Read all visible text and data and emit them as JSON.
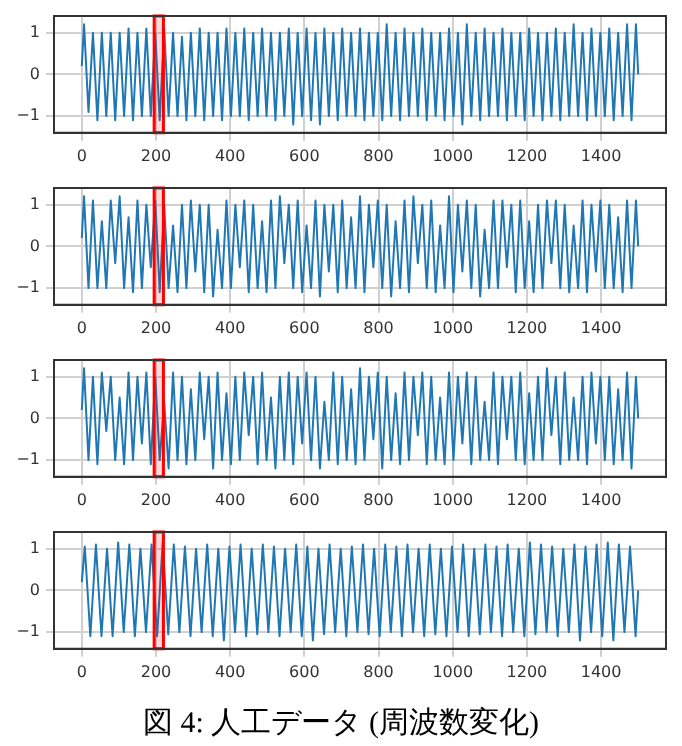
{
  "chart_data": [
    {
      "type": "line",
      "x": [
        0,
        6,
        18,
        30,
        42,
        54,
        66,
        78,
        90,
        102,
        114,
        126,
        138,
        150,
        162,
        174,
        186,
        198,
        210,
        222,
        234,
        246,
        258,
        270,
        282,
        294,
        306,
        318,
        330,
        342,
        354,
        366,
        378,
        390,
        402,
        414,
        426,
        438,
        450,
        462,
        474,
        486,
        498,
        510,
        522,
        534,
        546,
        558,
        570,
        582,
        594,
        606,
        618,
        630,
        642,
        654,
        666,
        678,
        690,
        702,
        714,
        726,
        738,
        750,
        762,
        774,
        786,
        798,
        810,
        822,
        834,
        846,
        858,
        870,
        882,
        894,
        906,
        918,
        930,
        942,
        954,
        966,
        978,
        990,
        1002,
        1014,
        1026,
        1038,
        1050,
        1062,
        1074,
        1086,
        1098,
        1110,
        1122,
        1134,
        1146,
        1158,
        1170,
        1182,
        1194,
        1206,
        1218,
        1230,
        1242,
        1254,
        1266,
        1278,
        1290,
        1302,
        1314,
        1326,
        1338,
        1350,
        1362,
        1374,
        1386,
        1398,
        1410,
        1422,
        1434,
        1446,
        1458,
        1470,
        1482,
        1494,
        1500
      ],
      "series": [
        {
          "color": "#1f77b4",
          "values": [
            0.2,
            1.2,
            -0.9,
            1.0,
            -1.1,
            1.0,
            -1.0,
            1.0,
            -1.1,
            1.0,
            -1.0,
            1.1,
            -1.1,
            1.0,
            -1.0,
            1.1,
            -1.0,
            1.0,
            -1.1,
            1.1,
            -1.0,
            1.0,
            -1.0,
            0.9,
            -1.1,
            1.0,
            -1.0,
            1.1,
            -1.1,
            1.0,
            -1.0,
            1.0,
            -1.1,
            1.1,
            -1.0,
            1.0,
            -1.0,
            1.1,
            -1.1,
            1.0,
            -1.0,
            1.1,
            -1.0,
            1.0,
            -1.1,
            1.0,
            -1.0,
            1.1,
            -1.2,
            1.0,
            -1.0,
            1.1,
            -1.1,
            1.0,
            -1.2,
            1.1,
            -1.0,
            1.0,
            -1.1,
            1.1,
            -1.0,
            1.0,
            -1.0,
            1.1,
            -1.1,
            1.0,
            -1.0,
            1.0,
            -1.1,
            1.2,
            -1.0,
            1.0,
            -1.1,
            1.1,
            -1.0,
            1.0,
            -1.0,
            1.1,
            -1.1,
            1.0,
            -1.0,
            1.0,
            -1.1,
            1.1,
            -1.0,
            1.0,
            -1.2,
            1.2,
            -1.0,
            1.0,
            -1.1,
            1.1,
            -1.0,
            1.0,
            -1.0,
            1.1,
            -1.1,
            1.0,
            -1.0,
            1.0,
            -1.1,
            1.1,
            -1.0,
            1.0,
            -1.1,
            1.0,
            -1.0,
            1.1,
            -1.1,
            1.0,
            -1.0,
            1.2,
            -1.0,
            1.0,
            -1.1,
            1.1,
            -1.0,
            1.0,
            -1.0,
            1.1,
            -1.1,
            1.0,
            -1.0,
            1.2,
            -1.1,
            1.2,
            0
          ]
        }
      ],
      "xlim": [
        -75,
        1575
      ],
      "ylim": [
        -1.4,
        1.4
      ],
      "xticks": [
        0,
        200,
        400,
        600,
        800,
        1000,
        1200,
        1400
      ],
      "yticks": [
        -1,
        0,
        1
      ],
      "grid": true,
      "bands": [
        {
          "axis": "x",
          "from": 195,
          "to": 220,
          "color": "#ff0000"
        }
      ]
    },
    {
      "type": "line",
      "x": [
        0,
        6,
        18,
        30,
        42,
        54,
        66,
        78,
        90,
        102,
        114,
        126,
        138,
        150,
        162,
        174,
        186,
        198,
        210,
        222,
        234,
        246,
        258,
        270,
        282,
        294,
        306,
        318,
        330,
        342,
        354,
        366,
        378,
        390,
        402,
        414,
        426,
        438,
        450,
        462,
        474,
        486,
        498,
        510,
        522,
        534,
        546,
        558,
        570,
        582,
        594,
        606,
        618,
        630,
        642,
        654,
        666,
        678,
        690,
        702,
        714,
        726,
        738,
        750,
        762,
        774,
        786,
        798,
        810,
        822,
        834,
        846,
        858,
        870,
        882,
        894,
        906,
        918,
        930,
        942,
        954,
        966,
        978,
        990,
        1002,
        1014,
        1026,
        1038,
        1050,
        1062,
        1074,
        1086,
        1098,
        1110,
        1122,
        1134,
        1146,
        1158,
        1170,
        1182,
        1194,
        1206,
        1218,
        1230,
        1242,
        1254,
        1266,
        1278,
        1290,
        1302,
        1314,
        1326,
        1338,
        1350,
        1362,
        1374,
        1386,
        1398,
        1410,
        1422,
        1434,
        1446,
        1458,
        1470,
        1482,
        1494,
        1500
      ],
      "series": [
        {
          "color": "#1f77b4",
          "values": [
            0.2,
            1.2,
            -1.0,
            1.1,
            -1.0,
            0.6,
            -1.0,
            1.1,
            -0.4,
            1.2,
            -1.0,
            0.7,
            -1.1,
            1.1,
            -1.0,
            1.0,
            -0.5,
            1.1,
            -1.1,
            1.0,
            -1.0,
            0.5,
            -1.1,
            1.0,
            -1.0,
            1.1,
            -0.6,
            1.0,
            -1.1,
            1.0,
            -1.2,
            0.4,
            -1.0,
            1.1,
            -1.0,
            1.0,
            -0.5,
            1.1,
            -1.1,
            1.0,
            -1.0,
            0.6,
            -1.1,
            1.1,
            -1.0,
            1.2,
            -0.4,
            1.0,
            -1.0,
            1.1,
            -1.1,
            0.5,
            -1.0,
            1.1,
            -1.2,
            1.0,
            -0.6,
            1.0,
            -1.1,
            1.1,
            -1.0,
            0.7,
            -1.0,
            1.2,
            -1.1,
            1.0,
            -0.5,
            1.1,
            -1.0,
            1.0,
            -1.2,
            0.6,
            -1.0,
            1.1,
            -1.1,
            1.2,
            -0.4,
            1.0,
            -1.0,
            1.1,
            -1.1,
            0.5,
            -1.0,
            1.2,
            -1.1,
            1.0,
            -0.6,
            1.1,
            -1.0,
            1.0,
            -1.2,
            0.4,
            -1.0,
            1.1,
            -1.0,
            1.1,
            -0.5,
            1.0,
            -1.1,
            1.1,
            -1.0,
            0.6,
            -1.1,
            1.0,
            -1.0,
            1.1,
            -0.4,
            1.1,
            -1.0,
            1.0,
            -1.1,
            0.5,
            -1.0,
            1.1,
            -1.1,
            1.0,
            -0.6,
            1.1,
            -1.0,
            1.0,
            -1.0,
            0.7,
            -1.1,
            1.1,
            -1.0,
            1.1,
            0
          ]
        }
      ],
      "xlim": [
        -75,
        1575
      ],
      "ylim": [
        -1.4,
        1.4
      ],
      "xticks": [
        0,
        200,
        400,
        600,
        800,
        1000,
        1200,
        1400
      ],
      "yticks": [
        -1,
        0,
        1
      ],
      "grid": true,
      "bands": [
        {
          "axis": "x",
          "from": 195,
          "to": 220,
          "color": "#ff0000"
        }
      ]
    },
    {
      "type": "line",
      "x": [
        0,
        6,
        18,
        30,
        42,
        54,
        66,
        78,
        90,
        102,
        114,
        126,
        138,
        150,
        162,
        174,
        186,
        198,
        210,
        222,
        234,
        246,
        258,
        270,
        282,
        294,
        306,
        318,
        330,
        342,
        354,
        366,
        378,
        390,
        402,
        414,
        426,
        438,
        450,
        462,
        474,
        486,
        498,
        510,
        522,
        534,
        546,
        558,
        570,
        582,
        594,
        606,
        618,
        630,
        642,
        654,
        666,
        678,
        690,
        702,
        714,
        726,
        738,
        750,
        762,
        774,
        786,
        798,
        810,
        822,
        834,
        846,
        858,
        870,
        882,
        894,
        906,
        918,
        930,
        942,
        954,
        966,
        978,
        990,
        1002,
        1014,
        1026,
        1038,
        1050,
        1062,
        1074,
        1086,
        1098,
        1110,
        1122,
        1134,
        1146,
        1158,
        1170,
        1182,
        1194,
        1206,
        1218,
        1230,
        1242,
        1254,
        1266,
        1278,
        1290,
        1302,
        1314,
        1326,
        1338,
        1350,
        1362,
        1374,
        1386,
        1398,
        1410,
        1422,
        1434,
        1446,
        1458,
        1470,
        1482,
        1494,
        1500
      ],
      "series": [
        {
          "color": "#1f77b4",
          "values": [
            0.2,
            1.2,
            -1.0,
            1.0,
            -1.1,
            1.1,
            -0.3,
            1.0,
            -1.0,
            0.5,
            -1.1,
            1.1,
            -1.0,
            1.0,
            -0.6,
            1.1,
            -1.1,
            1.0,
            -1.0,
            0.4,
            -1.2,
            1.1,
            -1.0,
            1.0,
            -1.1,
            0.7,
            -1.0,
            1.1,
            -0.5,
            1.0,
            -1.2,
            1.1,
            -1.0,
            0.6,
            -1.1,
            1.0,
            -1.0,
            1.1,
            -0.4,
            1.0,
            -1.1,
            1.1,
            -1.0,
            0.5,
            -1.2,
            1.0,
            -1.0,
            1.1,
            -1.1,
            1.0,
            -0.6,
            1.1,
            -1.0,
            1.0,
            -1.2,
            0.4,
            -1.0,
            1.1,
            -1.1,
            1.0,
            -1.0,
            0.7,
            -1.1,
            1.2,
            -1.0,
            1.0,
            -0.5,
            1.1,
            -1.2,
            1.0,
            -1.0,
            0.6,
            -1.1,
            1.1,
            -1.0,
            1.0,
            -0.4,
            1.1,
            -1.1,
            1.0,
            -1.0,
            0.5,
            -1.1,
            1.1,
            -1.0,
            1.0,
            -0.6,
            1.1,
            -1.1,
            1.0,
            -1.0,
            0.4,
            -1.0,
            1.1,
            -1.1,
            1.0,
            -0.5,
            1.0,
            -1.0,
            1.1,
            -1.1,
            0.6,
            -1.0,
            1.0,
            -1.0,
            1.2,
            -0.4,
            1.0,
            -1.1,
            1.1,
            -1.0,
            0.5,
            -1.0,
            1.0,
            -1.1,
            1.1,
            -0.6,
            1.0,
            -1.0,
            1.0,
            -1.1,
            0.7,
            -1.0,
            1.1,
            -1.2,
            1.0,
            0
          ]
        }
      ],
      "xlim": [
        -75,
        1575
      ],
      "ylim": [
        -1.4,
        1.4
      ],
      "xticks": [
        0,
        200,
        400,
        600,
        800,
        1000,
        1200,
        1400
      ],
      "yticks": [
        -1,
        0,
        1
      ],
      "grid": true,
      "bands": [
        {
          "axis": "x",
          "from": 195,
          "to": 220,
          "color": "#ff0000"
        }
      ]
    },
    {
      "type": "line",
      "x": [
        0,
        8,
        23,
        38,
        53,
        68,
        83,
        98,
        113,
        128,
        143,
        158,
        173,
        188,
        203,
        218,
        233,
        248,
        263,
        278,
        293,
        308,
        323,
        338,
        353,
        368,
        383,
        398,
        413,
        428,
        443,
        458,
        473,
        488,
        503,
        518,
        533,
        548,
        563,
        578,
        593,
        608,
        623,
        638,
        653,
        668,
        683,
        698,
        713,
        728,
        743,
        758,
        773,
        788,
        803,
        818,
        833,
        848,
        863,
        878,
        893,
        908,
        923,
        938,
        953,
        968,
        983,
        998,
        1013,
        1028,
        1043,
        1058,
        1073,
        1088,
        1103,
        1118,
        1133,
        1148,
        1163,
        1178,
        1193,
        1208,
        1223,
        1238,
        1253,
        1268,
        1283,
        1298,
        1313,
        1328,
        1343,
        1358,
        1373,
        1388,
        1403,
        1418,
        1433,
        1448,
        1463,
        1478,
        1493,
        1500
      ],
      "series": [
        {
          "color": "#1f77b4",
          "values": [
            0.2,
            1.05,
            -1.1,
            1.1,
            -1.1,
            1.0,
            -1.1,
            1.15,
            -1.0,
            1.1,
            -1.1,
            1.0,
            -1.0,
            1.1,
            -1.1,
            1.15,
            -1.05,
            1.1,
            -1.0,
            1.05,
            -1.1,
            1.0,
            -1.0,
            1.1,
            -1.1,
            1.0,
            -1.2,
            1.05,
            -1.0,
            1.1,
            -1.1,
            1.0,
            -1.05,
            1.1,
            -1.0,
            1.05,
            -1.1,
            1.0,
            -1.0,
            1.1,
            -1.1,
            1.05,
            -1.2,
            1.0,
            -1.05,
            1.1,
            -1.0,
            1.0,
            -1.1,
            1.05,
            -1.0,
            1.1,
            -1.05,
            1.0,
            -1.1,
            1.1,
            -1.0,
            1.05,
            -1.1,
            1.1,
            -1.0,
            1.0,
            -1.1,
            1.1,
            -1.05,
            1.0,
            -1.1,
            1.05,
            -1.0,
            1.1,
            -1.1,
            1.0,
            -1.05,
            1.1,
            -1.0,
            1.05,
            -1.1,
            1.1,
            -1.0,
            1.0,
            -1.1,
            1.15,
            -1.05,
            1.1,
            -1.0,
            1.05,
            -1.1,
            1.0,
            -1.0,
            1.1,
            -1.2,
            1.05,
            -1.0,
            1.1,
            -1.1,
            1.15,
            -1.2,
            1.1,
            -1.0,
            1.05,
            -1.1,
            0
          ]
        }
      ],
      "xlim": [
        -75,
        1575
      ],
      "ylim": [
        -1.4,
        1.4
      ],
      "xticks": [
        0,
        200,
        400,
        600,
        800,
        1000,
        1200,
        1400
      ],
      "yticks": [
        -1,
        0,
        1
      ],
      "grid": true,
      "bands": [
        {
          "axis": "x",
          "from": 195,
          "to": 220,
          "color": "#ff0000"
        }
      ],
      "annotations": [
        "図 4: 人工データ (周波数変化)"
      ]
    }
  ]
}
